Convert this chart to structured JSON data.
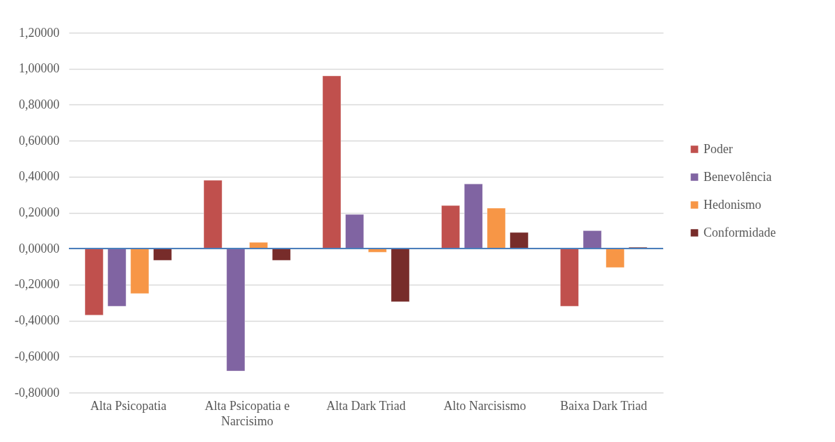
{
  "chart_data": {
    "type": "bar",
    "categories": [
      "Alta Psicopatia",
      "Alta Psicopatia e Narcisimo",
      "Alta Dark Triad",
      "Alto Narcisismo",
      "Baixa Dark Triad"
    ],
    "series": [
      {
        "name": "Poder",
        "color": "#c0504d",
        "values": [
          -0.37,
          0.38,
          0.96,
          0.24,
          -0.32
        ]
      },
      {
        "name": "Benevolência",
        "color": "#8064a2",
        "values": [
          -0.32,
          -0.68,
          0.19,
          0.36,
          0.1
        ]
      },
      {
        "name": "Hedonismo",
        "color": "#f79646",
        "values": [
          -0.25,
          0.035,
          -0.02,
          0.225,
          -0.105
        ]
      },
      {
        "name": "Conformidade",
        "color": "#772c2a",
        "values": [
          -0.065,
          -0.065,
          -0.295,
          0.09,
          0.008
        ]
      }
    ],
    "ylim": [
      -0.8,
      1.2
    ],
    "yticks": [
      {
        "value": -0.8,
        "label": "-0,80000"
      },
      {
        "value": -0.6,
        "label": "-0,60000"
      },
      {
        "value": -0.4,
        "label": "-0,40000"
      },
      {
        "value": -0.2,
        "label": "-0,20000"
      },
      {
        "value": 0,
        "label": "0,00000"
      },
      {
        "value": 0.2,
        "label": "0,20000"
      },
      {
        "value": 0.4,
        "label": "0,40000"
      },
      {
        "value": 0.6,
        "label": "0,60000"
      },
      {
        "value": 0.8,
        "label": "0,80000"
      },
      {
        "value": 1.0,
        "label": "1,00000"
      },
      {
        "value": 1.2,
        "label": "1,20000"
      }
    ],
    "ref_lines": [
      {
        "axis": "y",
        "value": 0,
        "color": "#4a7ebb"
      }
    ],
    "grid": "y",
    "legend": "right"
  }
}
